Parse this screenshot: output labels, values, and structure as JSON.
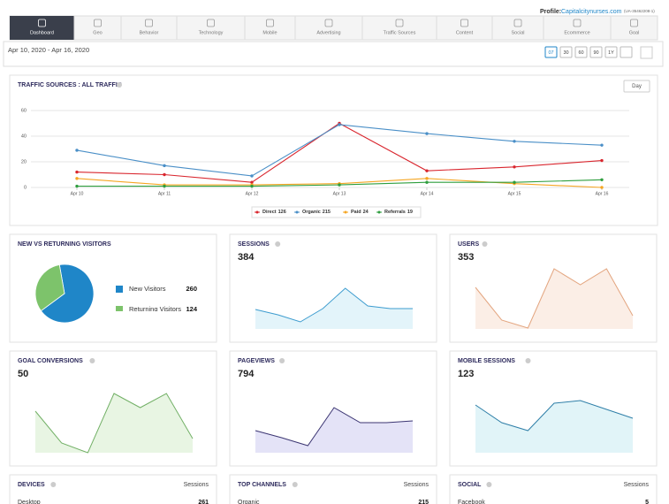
{
  "header": {
    "profile_label": "Profile:",
    "profile_site": "Capitalcitynurses.com",
    "profile_id": "(UA-35462208-1)"
  },
  "tabs": [
    "Dashboard",
    "Geo",
    "Behavior",
    "Technology",
    "Mobile",
    "Advertising",
    "Traffic Sources",
    "Content",
    "Social",
    "Ecommerce",
    "Goal"
  ],
  "date_range": "Apr 10, 2020 - Apr 16, 2020",
  "range_buttons": [
    "07",
    "30",
    "60",
    "90",
    "1Y"
  ],
  "chart_data": {
    "type": "line",
    "title": "TRAFFIC SOURCES : ALL TRAFFIC",
    "button": "Day",
    "categories": [
      "Apr 10",
      "Apr 11",
      "Apr 12",
      "Apr 13",
      "Apr 14",
      "Apr 15",
      "Apr 16"
    ],
    "ylim": [
      0,
      60
    ],
    "yticks": [
      0,
      20,
      40,
      60
    ],
    "grid": true,
    "series": [
      {
        "name": "Direct",
        "total": 126,
        "color": "#d9262e",
        "values": [
          12,
          10,
          4,
          50,
          13,
          16,
          21
        ]
      },
      {
        "name": "Organic",
        "total": 215,
        "color": "#4a8fc7",
        "values": [
          29,
          17,
          9,
          49,
          42,
          36,
          33
        ]
      },
      {
        "name": "Paid",
        "total": 24,
        "color": "#f5a623",
        "values": [
          7,
          2,
          2,
          3,
          7,
          3,
          0
        ]
      },
      {
        "name": "Referrals",
        "total": 19,
        "color": "#2e9e3e",
        "values": [
          1,
          1,
          1,
          2,
          4,
          4,
          6
        ]
      }
    ]
  },
  "visitors": {
    "title": "NEW VS RETURNING VISITORS",
    "items": [
      {
        "name": "New Visitors",
        "value": 260,
        "color": "#1f86c8"
      },
      {
        "name": "Returning Visitors",
        "value": 124,
        "color": "#7dc36b"
      }
    ]
  },
  "sparklines": [
    {
      "title": "SESSIONS",
      "total": 384,
      "color": "#3d9ccf",
      "fill": "#e3f4fa",
      "values": [
        22,
        16,
        8,
        23,
        46,
        26,
        23,
        23
      ]
    },
    {
      "title": "USERS",
      "total": 353,
      "color": "#e3a57f",
      "fill": "#fbeee6",
      "values": [
        47,
        10,
        1,
        68,
        50,
        68,
        15
      ]
    },
    {
      "title": "GOAL CONVERSIONS",
      "total": 50,
      "color": "#72b066",
      "fill": "#e8f5e3",
      "values": [
        47,
        11,
        0,
        67,
        51,
        67,
        16
      ]
    },
    {
      "title": "PAGEVIEWS",
      "total": 794,
      "color": "#3b3572",
      "fill": "#e4e3f7",
      "values": [
        25,
        17,
        8,
        51,
        34,
        34,
        36
      ]
    },
    {
      "title": "MOBILE SESSIONS",
      "total": 123,
      "color": "#2f7fa8",
      "fill": "#e1f4f8",
      "values": [
        54,
        34,
        25,
        56,
        59,
        49,
        39
      ]
    }
  ],
  "tables": [
    {
      "title": "DEVICES",
      "column": "Sessions",
      "rows": [
        {
          "label": "Desktop",
          "value": 261
        }
      ]
    },
    {
      "title": "TOP CHANNELS",
      "column": "Sessions",
      "rows": [
        {
          "label": "Organic",
          "value": 215
        }
      ]
    },
    {
      "title": "SOCIAL",
      "column": "Sessions",
      "rows": [
        {
          "label": "Facebook",
          "value": 5
        }
      ]
    }
  ]
}
